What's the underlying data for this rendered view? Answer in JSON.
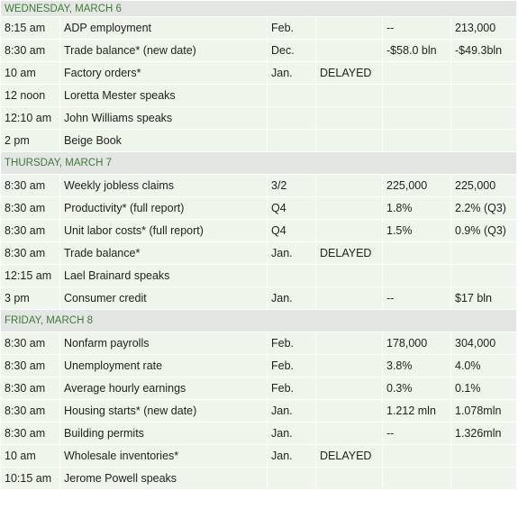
{
  "sections": [
    {
      "title": "WEDNESDAY, MARCH 6",
      "rows": [
        [
          "8:15 am",
          "ADP employment",
          "Feb.",
          null,
          "--",
          "213,000"
        ],
        [
          "8:30 am",
          "Trade balance* (new date)",
          "Dec.",
          null,
          "-$58.0 bln",
          "-$49.3bln"
        ],
        [
          "10 am",
          "Factory orders*",
          "Jan.",
          "DELAYED",
          null,
          null
        ],
        [
          "12 noon",
          "Loretta Mester speaks",
          null,
          null,
          null,
          null
        ],
        [
          "12:10 am",
          "John Williams speaks",
          null,
          null,
          null,
          null
        ],
        [
          "2 pm",
          "Beige Book",
          null,
          null,
          null,
          null
        ]
      ]
    },
    {
      "title": "THURSDAY, MARCH 7",
      "rows": [
        [
          "8:30 am",
          "Weekly jobless claims",
          "3/2",
          null,
          "225,000",
          "225,000"
        ],
        [
          "8:30 am",
          "Productivity* (full report)",
          "Q4",
          null,
          "1.8%",
          "2.2% (Q3)"
        ],
        [
          "8:30 am",
          "Unit labor costs* (full report)",
          "Q4",
          null,
          "1.5%",
          "0.9% (Q3)"
        ],
        [
          "8:30 am",
          "Trade balance*",
          "Jan.",
          "DELAYED",
          null,
          null
        ],
        [
          "12:15 am",
          "Lael Brainard speaks",
          null,
          null,
          null,
          null
        ],
        [
          "3 pm",
          "Consumer credit",
          "Jan.",
          null,
          "--",
          "$17 bln"
        ]
      ]
    },
    {
      "title": "FRIDAY, MARCH 8",
      "rows": [
        [
          "8:30 am",
          "Nonfarm payrolls",
          "Feb.",
          null,
          "178,000",
          "304,000"
        ],
        [
          "8:30 am",
          "Unemployment rate",
          "Feb.",
          null,
          "3.8%",
          "4.0%"
        ],
        [
          "8:30 am",
          "Average hourly earnings",
          "Feb.",
          null,
          "0.3%",
          "0.1%"
        ],
        [
          "8:30 am",
          "Housing starts* (new date)",
          "Jan.",
          null,
          "1.212 mln",
          "1.078mln"
        ],
        [
          "8:30 am",
          "Building permits",
          "Jan.",
          null,
          "--",
          "1.326mln"
        ],
        [
          "10 am",
          "Wholesale inventories*",
          "Jan.",
          "DELAYED",
          null,
          null
        ],
        [
          "10:15 am",
          "Jerome Powell speaks",
          null,
          null,
          null,
          null
        ]
      ]
    }
  ]
}
